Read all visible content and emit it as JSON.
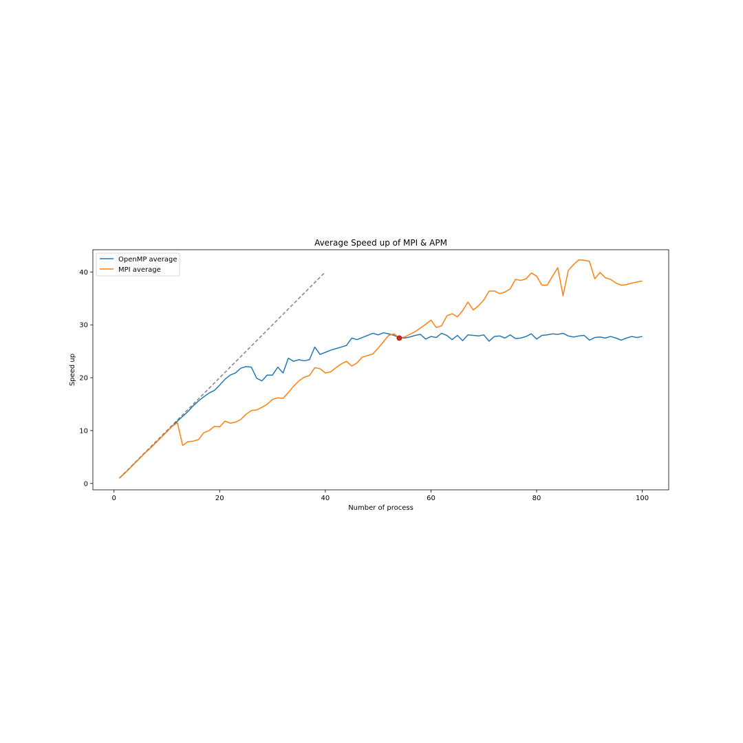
{
  "chart_data": {
    "type": "line",
    "title": "Average Speed up of MPI & APM",
    "xlabel": "Number of process",
    "ylabel": "Speed up",
    "xlim": [
      -4,
      105
    ],
    "ylim": [
      -1.2,
      44.2
    ],
    "xticks": [
      0,
      20,
      40,
      60,
      80,
      100
    ],
    "yticks": [
      0,
      10,
      20,
      30,
      40
    ],
    "legend_position": "upper-left",
    "grid": false,
    "series": [
      {
        "name": "OpenMP average",
        "color": "#1f77b4",
        "x": [
          1,
          2,
          3,
          4,
          5,
          6,
          7,
          8,
          9,
          10,
          11,
          12,
          13,
          14,
          15,
          16,
          17,
          18,
          19,
          20,
          21,
          22,
          23,
          24,
          25,
          26,
          27,
          28,
          29,
          30,
          31,
          32,
          33,
          34,
          35,
          36,
          37,
          38,
          39,
          40,
          41,
          42,
          43,
          44,
          45,
          46,
          47,
          48,
          49,
          50,
          51,
          52,
          53,
          54,
          55,
          56,
          57,
          58,
          59,
          60,
          61,
          62,
          63,
          64,
          65,
          66,
          67,
          68,
          69,
          70,
          71,
          72,
          73,
          74,
          75,
          76,
          77,
          78,
          79,
          80,
          81,
          82,
          83,
          84,
          85,
          86,
          87,
          88,
          89,
          90,
          91,
          92,
          93,
          94,
          95,
          96,
          97,
          98,
          99,
          100
        ],
        "y": [
          1.0,
          1.9,
          2.9,
          3.9,
          4.9,
          5.9,
          6.8,
          7.8,
          8.8,
          9.8,
          10.8,
          11.8,
          12.7,
          13.6,
          14.7,
          15.6,
          16.4,
          17.1,
          17.6,
          18.6,
          19.7,
          20.5,
          20.9,
          21.8,
          22.1,
          22.0,
          19.9,
          19.4,
          20.5,
          20.5,
          22.0,
          20.9,
          23.7,
          23.1,
          23.4,
          23.2,
          23.4,
          25.8,
          24.4,
          24.8,
          25.2,
          25.5,
          25.8,
          26.1,
          27.5,
          27.2,
          27.6,
          28.0,
          28.4,
          28.1,
          28.5,
          28.3,
          28.0,
          27.6,
          27.5,
          27.7,
          28.0,
          28.2,
          27.3,
          27.8,
          27.6,
          28.4,
          28.0,
          27.2,
          28.0,
          27.0,
          28.1,
          28.0,
          27.9,
          28.1,
          26.9,
          27.8,
          27.9,
          27.5,
          28.1,
          27.4,
          27.5,
          27.8,
          28.3,
          27.3,
          28.0,
          28.1,
          28.3,
          28.2,
          28.4,
          27.9,
          27.7,
          27.9,
          28.0,
          27.1,
          27.6,
          27.7,
          27.5,
          27.8,
          27.5,
          27.1,
          27.5,
          27.8,
          27.6,
          27.8
        ]
      },
      {
        "name": "MPI average",
        "color": "#ff7f0e",
        "x": [
          1,
          2,
          3,
          4,
          5,
          6,
          7,
          8,
          9,
          10,
          11,
          12,
          13,
          14,
          15,
          16,
          17,
          18,
          19,
          20,
          21,
          22,
          23,
          24,
          25,
          26,
          27,
          28,
          29,
          30,
          31,
          32,
          33,
          34,
          35,
          36,
          37,
          38,
          39,
          40,
          41,
          42,
          43,
          44,
          45,
          46,
          47,
          48,
          49,
          50,
          51,
          52,
          53,
          54,
          55,
          56,
          57,
          58,
          59,
          60,
          61,
          62,
          63,
          64,
          65,
          66,
          67,
          68,
          69,
          70,
          71,
          72,
          73,
          74,
          75,
          76,
          77,
          78,
          79,
          80,
          81,
          82,
          83,
          84,
          85,
          86,
          87,
          88,
          89,
          90,
          91,
          92,
          93,
          94,
          95,
          96,
          97,
          98,
          99,
          100
        ],
        "y": [
          1.0,
          1.9,
          2.9,
          3.9,
          4.9,
          5.9,
          6.8,
          7.8,
          8.8,
          9.8,
          10.8,
          11.5,
          7.2,
          7.9,
          8.0,
          8.3,
          9.6,
          10.0,
          10.8,
          10.7,
          11.8,
          11.4,
          11.6,
          12.1,
          13.1,
          13.8,
          13.9,
          14.4,
          15.0,
          15.9,
          16.2,
          16.1,
          17.2,
          18.4,
          19.4,
          20.1,
          20.4,
          21.9,
          21.7,
          20.9,
          21.1,
          21.9,
          22.6,
          23.1,
          22.2,
          22.8,
          23.9,
          24.2,
          24.5,
          25.6,
          26.8,
          28.0,
          28.3,
          27.5,
          27.7,
          28.2,
          28.7,
          29.4,
          30.1,
          30.9,
          29.5,
          29.8,
          31.7,
          32.1,
          31.5,
          32.7,
          34.3,
          32.8,
          33.6,
          34.7,
          36.4,
          36.4,
          35.9,
          36.2,
          36.8,
          38.6,
          38.4,
          38.7,
          39.8,
          39.2,
          37.5,
          37.5,
          39.2,
          40.8,
          35.5,
          40.3,
          41.4,
          42.3,
          42.2,
          42.0,
          38.7,
          39.9,
          38.9,
          38.6,
          37.9,
          37.5,
          37.6,
          37.9,
          38.1,
          38.3
        ]
      }
    ],
    "reference_line": {
      "color": "#808080",
      "style": "dashed",
      "x": [
        1,
        40
      ],
      "y": [
        1,
        40
      ]
    },
    "marker": {
      "color": "#d62728",
      "x": 54,
      "y": 27.5
    }
  }
}
